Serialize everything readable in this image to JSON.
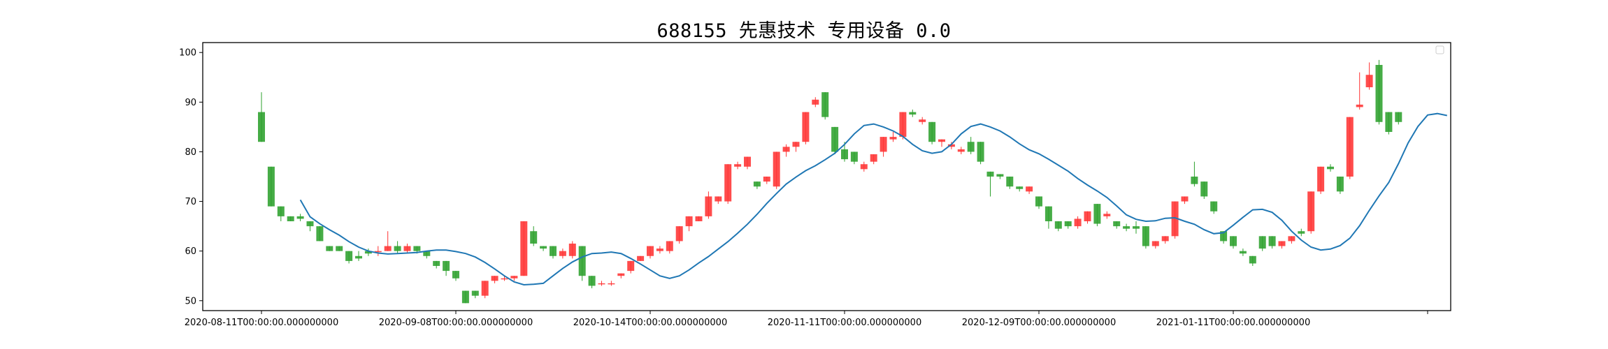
{
  "chart_data": {
    "type": "candlestick",
    "title": "688155 先惠技术 专用设备 0.0",
    "ylim": [
      48,
      102
    ],
    "yticks": [
      50,
      60,
      70,
      80,
      90,
      100
    ],
    "xtick_labels": [
      "2020-08-11T00:00:00.000000000",
      "2020-09-08T00:00:00.000000000",
      "2020-10-14T00:00:00.000000000",
      "2020-11-11T00:00:00.000000000",
      "2020-12-09T00:00:00.000000000",
      "2021-01-11T00:00:00.000000000",
      ""
    ],
    "xtick_index": [
      0,
      20,
      40,
      60,
      80,
      100,
      120
    ],
    "legend": "top-right (empty)",
    "up_color": "#ff3333",
    "down_color": "#2ca02c",
    "ma_color": "#1f77b4",
    "candles": [
      [
        88,
        82,
        92,
        82
      ],
      [
        77,
        69,
        77,
        69
      ],
      [
        69,
        67,
        69,
        66
      ],
      [
        67,
        66,
        67,
        66
      ],
      [
        67,
        66.5,
        67.5,
        66
      ],
      [
        66,
        65,
        66,
        64
      ],
      [
        65,
        62,
        65,
        62
      ],
      [
        61,
        60,
        61,
        60
      ],
      [
        61,
        60,
        61,
        60
      ],
      [
        60,
        58,
        60,
        57.5
      ],
      [
        59,
        58.5,
        60,
        58
      ],
      [
        60,
        59.5,
        60.5,
        59
      ],
      [
        60,
        60,
        61,
        59
      ],
      [
        60,
        61,
        64,
        60
      ],
      [
        61,
        60,
        62,
        59.5
      ],
      [
        60,
        61,
        61.5,
        59.5
      ],
      [
        61,
        60,
        61,
        59.5
      ],
      [
        60,
        59,
        60,
        58.5
      ],
      [
        58,
        57,
        58,
        56.5
      ],
      [
        58,
        56,
        58,
        55
      ],
      [
        56,
        54.5,
        56,
        54
      ],
      [
        52,
        49.5,
        52,
        49.5
      ],
      [
        52,
        51,
        52,
        50.5
      ],
      [
        51,
        54,
        54,
        50.5
      ],
      [
        54,
        55,
        55,
        53.5
      ],
      [
        54.5,
        54.5,
        55,
        54
      ],
      [
        54.5,
        55,
        55,
        54
      ],
      [
        55,
        66,
        66,
        55
      ],
      [
        64,
        61.5,
        65,
        61
      ],
      [
        61,
        60.5,
        61,
        60
      ],
      [
        61,
        59,
        61,
        58.5
      ],
      [
        59,
        60,
        60.5,
        58.5
      ],
      [
        59,
        61.5,
        62,
        58.5
      ],
      [
        61,
        55,
        61,
        54
      ],
      [
        55,
        53,
        55,
        52.5
      ],
      [
        53.5,
        53.5,
        54,
        53
      ],
      [
        53.5,
        53.5,
        54,
        53
      ],
      [
        55,
        55.5,
        55.5,
        54.5
      ],
      [
        56,
        58,
        58,
        55.5
      ],
      [
        58,
        59,
        59,
        58
      ],
      [
        59,
        61,
        61,
        58.5
      ],
      [
        60,
        60.5,
        61,
        59.5
      ],
      [
        60,
        62,
        62,
        59.5
      ],
      [
        62,
        65,
        65,
        61.5
      ],
      [
        65,
        67,
        67,
        64
      ],
      [
        66,
        67,
        67,
        66
      ],
      [
        67,
        71,
        72,
        66.5
      ],
      [
        70,
        71,
        71,
        69.5
      ],
      [
        70,
        77.5,
        77.5,
        69.5
      ],
      [
        77,
        77.5,
        78,
        76.5
      ],
      [
        77,
        79,
        79,
        76.5
      ],
      [
        74,
        73,
        74,
        72.5
      ],
      [
        74,
        75,
        75,
        73.5
      ],
      [
        73,
        80,
        80,
        72.5
      ],
      [
        80,
        81,
        81.5,
        79
      ],
      [
        81,
        82,
        82,
        80
      ],
      [
        82,
        88,
        88,
        81.5
      ],
      [
        89.5,
        90.5,
        91,
        89
      ],
      [
        92,
        87,
        92,
        86.5
      ],
      [
        85,
        80,
        85,
        79.5
      ],
      [
        80.5,
        78.5,
        82,
        78
      ],
      [
        80,
        78,
        80,
        77.5
      ],
      [
        76.5,
        77.5,
        78,
        76
      ],
      [
        78,
        79.5,
        79.5,
        77.5
      ],
      [
        80,
        83,
        83,
        79
      ],
      [
        82.5,
        83,
        84,
        82
      ],
      [
        83,
        88,
        88,
        82.5
      ],
      [
        88,
        87.5,
        88.5,
        87
      ],
      [
        86,
        86.5,
        87,
        85.5
      ],
      [
        86,
        82,
        86,
        81.5
      ],
      [
        82,
        82.5,
        82.5,
        81
      ],
      [
        81,
        81.5,
        82,
        80.5
      ],
      [
        80,
        80.5,
        81,
        79.5
      ],
      [
        82,
        80,
        83,
        79.5
      ],
      [
        82,
        78,
        82,
        77.5
      ],
      [
        76,
        75,
        76,
        71
      ],
      [
        75.5,
        75,
        75.5,
        74.5
      ],
      [
        75,
        73,
        75,
        72.5
      ],
      [
        73,
        72.5,
        73,
        72
      ],
      [
        72,
        73,
        73,
        71.5
      ],
      [
        71,
        69,
        71,
        68.5
      ],
      [
        69,
        66,
        69,
        64.5
      ],
      [
        66,
        64.5,
        66,
        64
      ],
      [
        66,
        65,
        66,
        64.5
      ],
      [
        65,
        66.5,
        67,
        64.5
      ],
      [
        66,
        68,
        68,
        65.5
      ],
      [
        69.5,
        65.5,
        69.5,
        65
      ],
      [
        67,
        67.5,
        68,
        66.5
      ],
      [
        66,
        65,
        66,
        64.5
      ],
      [
        65,
        64.5,
        65.5,
        64
      ],
      [
        65,
        64.5,
        66,
        63.5
      ],
      [
        65,
        61,
        65,
        60.5
      ],
      [
        61,
        62,
        62,
        60.5
      ],
      [
        62,
        63,
        63,
        61.5
      ],
      [
        63,
        70,
        70,
        62.5
      ],
      [
        70,
        71,
        71,
        69.5
      ],
      [
        75,
        73.5,
        78,
        73
      ],
      [
        74,
        71,
        74,
        70.5
      ],
      [
        70,
        68,
        70,
        67.5
      ],
      [
        64,
        62,
        64,
        61.5
      ],
      [
        63,
        61,
        63,
        60.5
      ],
      [
        60,
        59.5,
        60.5,
        59
      ],
      [
        59,
        57.5,
        59,
        57
      ],
      [
        63,
        60.5,
        63,
        60
      ],
      [
        63,
        61,
        63,
        60.5
      ],
      [
        61,
        62,
        62,
        60.5
      ],
      [
        62,
        63,
        63,
        61.5
      ],
      [
        64,
        63.5,
        64.5,
        63
      ],
      [
        64,
        72,
        72,
        63.5
      ],
      [
        72,
        77,
        77,
        71.5
      ],
      [
        77,
        76.5,
        77.5,
        76
      ],
      [
        75,
        72,
        75,
        71.5
      ],
      [
        75,
        87,
        87,
        74.5
      ],
      [
        89,
        89.5,
        96,
        88.5
      ],
      [
        93,
        95.5,
        98,
        92.5
      ],
      [
        97.5,
        86,
        98.5,
        85.5
      ],
      [
        88,
        84,
        88,
        83.5
      ],
      [
        88,
        86,
        88,
        85.5
      ]
    ],
    "ma": [
      70.3,
      66.9,
      65.5,
      64.3,
      63.2,
      61.9,
      60.8,
      60.0,
      59.6,
      59.4,
      59.5,
      59.6,
      59.7,
      60.0,
      60.2,
      60.2,
      59.9,
      59.5,
      58.8,
      57.7,
      56.4,
      55.0,
      53.8,
      53.2,
      53.3,
      53.5,
      55.0,
      56.5,
      57.8,
      58.8,
      59.5,
      59.6,
      59.8,
      59.5,
      58.5,
      57.4,
      56.2,
      55.0,
      54.5,
      55.0,
      56.2,
      57.6,
      58.9,
      60.4,
      61.9,
      63.6,
      65.4,
      67.4,
      69.6,
      71.6,
      73.5,
      74.9,
      76.2,
      77.2,
      78.4,
      79.7,
      81.5,
      83.6,
      85.3,
      85.6,
      85.0,
      84.2,
      83.1,
      81.5,
      80.2,
      79.7,
      80.0,
      81.5,
      83.6,
      85.1,
      85.6,
      85.0,
      84.2,
      83.0,
      81.6,
      80.4,
      79.6,
      78.5,
      77.3,
      76.1,
      74.6,
      73.3,
      72.1,
      70.8,
      69.1,
      67.3,
      66.4,
      66.0,
      66.1,
      66.6,
      66.7,
      66.0,
      65.4,
      64.3,
      63.5,
      63.7,
      65.2,
      66.8,
      68.3,
      68.4,
      67.8,
      66.2,
      64.0,
      62.2,
      60.8,
      60.2,
      60.4,
      61.1,
      62.6,
      65.1,
      68.2,
      71.1,
      73.8,
      77.6,
      81.8,
      85.1,
      87.4,
      87.7,
      87.3
    ],
    "ma_start_index": 4
  }
}
